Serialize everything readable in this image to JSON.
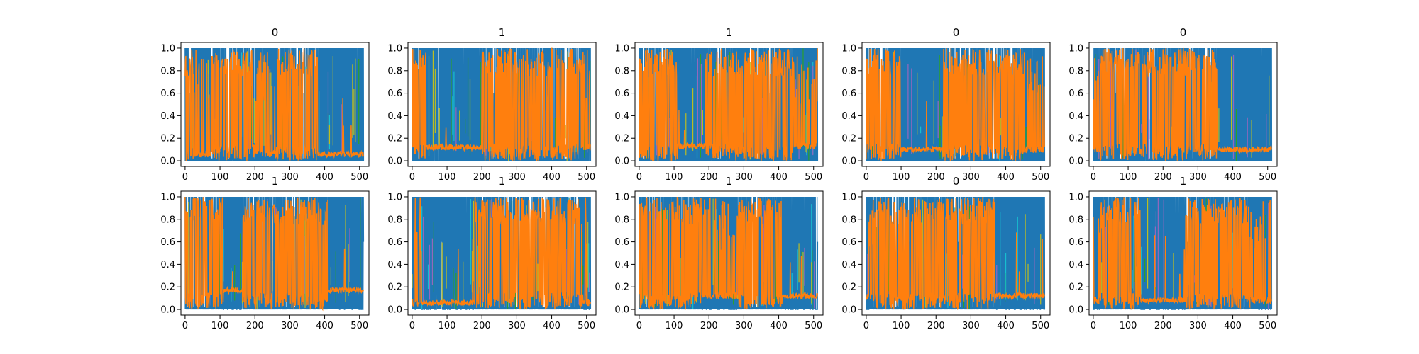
{
  "chart_data": [
    {
      "type": "line",
      "title": "0",
      "xlim": [
        -12,
        527
      ],
      "ylim": [
        -0.05,
        1.05
      ],
      "x_ticks": [
        0,
        100,
        200,
        300,
        400,
        500
      ],
      "y_ticks": [
        0.0,
        0.2,
        0.4,
        0.6,
        0.8,
        1.0
      ],
      "x_tick_labels": [
        "0",
        "100",
        "200",
        "300",
        "400",
        "500"
      ],
      "y_tick_labels": [
        "0.0",
        "0.2",
        "0.4",
        "0.6",
        "0.8",
        "1.0"
      ],
      "x": [
        0,
        511
      ],
      "segments": [
        {
          "from": 0,
          "to": 25,
          "level": "orange"
        },
        {
          "from": 25,
          "to": 75,
          "level": "mixed"
        },
        {
          "from": 75,
          "to": 200,
          "level": "orange"
        },
        {
          "from": 200,
          "to": 260,
          "level": "mixed"
        },
        {
          "from": 260,
          "to": 380,
          "level": "orange"
        },
        {
          "from": 380,
          "to": 511,
          "level": "blue"
        }
      ],
      "orange_baseline": 0.06,
      "series_colors": [
        "#1f77b4",
        "#ff7f0e",
        "#2ca02c",
        "#17becf",
        "#bcbd22",
        "#9467bd"
      ]
    },
    {
      "type": "line",
      "title": "1",
      "xlim": [
        -12,
        527
      ],
      "ylim": [
        -0.05,
        1.05
      ],
      "x_ticks": [
        0,
        100,
        200,
        300,
        400,
        500
      ],
      "y_ticks": [
        0.0,
        0.2,
        0.4,
        0.6,
        0.8,
        1.0
      ],
      "x_tick_labels": [
        "0",
        "100",
        "200",
        "300",
        "400",
        "500"
      ],
      "y_tick_labels": [
        "0.0",
        "0.2",
        "0.4",
        "0.6",
        "0.8",
        "1.0"
      ],
      "x": [
        0,
        511
      ],
      "segments": [
        {
          "from": 0,
          "to": 40,
          "level": "orange"
        },
        {
          "from": 40,
          "to": 200,
          "level": "blue"
        },
        {
          "from": 200,
          "to": 490,
          "level": "orange"
        },
        {
          "from": 490,
          "to": 511,
          "level": "mixed"
        }
      ],
      "orange_baseline": 0.12,
      "series_colors": [
        "#1f77b4",
        "#ff7f0e",
        "#2ca02c",
        "#17becf",
        "#bcbd22",
        "#9467bd"
      ]
    },
    {
      "type": "line",
      "title": "1",
      "xlim": [
        -12,
        527
      ],
      "ylim": [
        -0.05,
        1.05
      ],
      "x_ticks": [
        0,
        100,
        200,
        300,
        400,
        500
      ],
      "y_ticks": [
        0.0,
        0.2,
        0.4,
        0.6,
        0.8,
        1.0
      ],
      "x_tick_labels": [
        "0",
        "100",
        "200",
        "300",
        "400",
        "500"
      ],
      "y_tick_labels": [
        "0.0",
        "0.2",
        "0.4",
        "0.6",
        "0.8",
        "1.0"
      ],
      "x": [
        0,
        511
      ],
      "segments": [
        {
          "from": 0,
          "to": 110,
          "level": "orange"
        },
        {
          "from": 110,
          "to": 190,
          "level": "blue"
        },
        {
          "from": 190,
          "to": 440,
          "level": "orange"
        },
        {
          "from": 440,
          "to": 511,
          "level": "mixed"
        }
      ],
      "orange_baseline": 0.13,
      "series_colors": [
        "#1f77b4",
        "#ff7f0e",
        "#2ca02c",
        "#17becf",
        "#bcbd22",
        "#9467bd"
      ]
    },
    {
      "type": "line",
      "title": "0",
      "xlim": [
        -12,
        527
      ],
      "ylim": [
        -0.05,
        1.05
      ],
      "x_ticks": [
        0,
        100,
        200,
        300,
        400,
        500
      ],
      "y_ticks": [
        0.0,
        0.2,
        0.4,
        0.6,
        0.8,
        1.0
      ],
      "x_tick_labels": [
        "0",
        "100",
        "200",
        "300",
        "400",
        "500"
      ],
      "y_tick_labels": [
        "0.0",
        "0.2",
        "0.4",
        "0.6",
        "0.8",
        "1.0"
      ],
      "x": [
        0,
        511
      ],
      "segments": [
        {
          "from": 0,
          "to": 100,
          "level": "orange"
        },
        {
          "from": 100,
          "to": 220,
          "level": "blue"
        },
        {
          "from": 220,
          "to": 450,
          "level": "orange"
        },
        {
          "from": 450,
          "to": 511,
          "level": "mixed"
        }
      ],
      "orange_baseline": 0.1,
      "series_colors": [
        "#1f77b4",
        "#ff7f0e",
        "#2ca02c",
        "#17becf",
        "#bcbd22",
        "#9467bd"
      ]
    },
    {
      "type": "line",
      "title": "0",
      "xlim": [
        -12,
        527
      ],
      "ylim": [
        -0.05,
        1.05
      ],
      "x_ticks": [
        0,
        100,
        200,
        300,
        400,
        500
      ],
      "y_ticks": [
        0.0,
        0.2,
        0.4,
        0.6,
        0.8,
        1.0
      ],
      "x_tick_labels": [
        "0",
        "100",
        "200",
        "300",
        "400",
        "500"
      ],
      "y_tick_labels": [
        "0.0",
        "0.2",
        "0.4",
        "0.6",
        "0.8",
        "1.0"
      ],
      "x": [
        0,
        511
      ],
      "segments": [
        {
          "from": 0,
          "to": 20,
          "level": "mixed"
        },
        {
          "from": 20,
          "to": 355,
          "level": "orange"
        },
        {
          "from": 355,
          "to": 511,
          "level": "blue"
        }
      ],
      "orange_baseline": 0.1,
      "series_colors": [
        "#1f77b4",
        "#ff7f0e",
        "#2ca02c",
        "#17becf",
        "#bcbd22",
        "#9467bd"
      ]
    },
    {
      "type": "line",
      "title": "1",
      "xlim": [
        -12,
        527
      ],
      "ylim": [
        -0.05,
        1.05
      ],
      "x_ticks": [
        0,
        100,
        200,
        300,
        400,
        500
      ],
      "y_ticks": [
        0.0,
        0.2,
        0.4,
        0.6,
        0.8,
        1.0
      ],
      "x_tick_labels": [
        "0",
        "100",
        "200",
        "300",
        "400",
        "500"
      ],
      "y_tick_labels": [
        "0.0",
        "0.2",
        "0.4",
        "0.6",
        "0.8",
        "1.0"
      ],
      "x": [
        0,
        511
      ],
      "segments": [
        {
          "from": 0,
          "to": 110,
          "level": "orange"
        },
        {
          "from": 110,
          "to": 165,
          "level": "blue"
        },
        {
          "from": 165,
          "to": 410,
          "level": "orange"
        },
        {
          "from": 410,
          "to": 511,
          "level": "blue"
        }
      ],
      "orange_baseline": 0.17,
      "series_colors": [
        "#1f77b4",
        "#ff7f0e",
        "#2ca02c",
        "#17becf",
        "#bcbd22",
        "#9467bd"
      ]
    },
    {
      "type": "line",
      "title": "1",
      "xlim": [
        -12,
        527
      ],
      "ylim": [
        -0.05,
        1.05
      ],
      "x_ticks": [
        0,
        100,
        200,
        300,
        400,
        500
      ],
      "y_ticks": [
        0.0,
        0.2,
        0.4,
        0.6,
        0.8,
        1.0
      ],
      "x_tick_labels": [
        "0",
        "100",
        "200",
        "300",
        "400",
        "500"
      ],
      "y_tick_labels": [
        "0.0",
        "0.2",
        "0.4",
        "0.6",
        "0.8",
        "1.0"
      ],
      "x": [
        0,
        511
      ],
      "segments": [
        {
          "from": 0,
          "to": 30,
          "level": "mixed"
        },
        {
          "from": 30,
          "to": 180,
          "level": "blue"
        },
        {
          "from": 180,
          "to": 490,
          "level": "orange"
        },
        {
          "from": 490,
          "to": 511,
          "level": "mixed"
        }
      ],
      "orange_baseline": 0.06,
      "series_colors": [
        "#1f77b4",
        "#ff7f0e",
        "#2ca02c",
        "#17becf",
        "#bcbd22",
        "#9467bd"
      ]
    },
    {
      "type": "line",
      "title": "1",
      "xlim": [
        -12,
        527
      ],
      "ylim": [
        -0.05,
        1.05
      ],
      "x_ticks": [
        0,
        100,
        200,
        300,
        400,
        500
      ],
      "y_ticks": [
        0.0,
        0.2,
        0.4,
        0.6,
        0.8,
        1.0
      ],
      "x_tick_labels": [
        "0",
        "100",
        "200",
        "300",
        "400",
        "500"
      ],
      "y_tick_labels": [
        "0.0",
        "0.2",
        "0.4",
        "0.6",
        "0.8",
        "1.0"
      ],
      "x": [
        0,
        511
      ],
      "segments": [
        {
          "from": 0,
          "to": 180,
          "level": "orange"
        },
        {
          "from": 180,
          "to": 280,
          "level": "mixed"
        },
        {
          "from": 280,
          "to": 410,
          "level": "orange"
        },
        {
          "from": 410,
          "to": 511,
          "level": "blue"
        }
      ],
      "orange_baseline": 0.12,
      "series_colors": [
        "#1f77b4",
        "#ff7f0e",
        "#2ca02c",
        "#17becf",
        "#bcbd22",
        "#9467bd"
      ]
    },
    {
      "type": "line",
      "title": "0",
      "xlim": [
        -12,
        527
      ],
      "ylim": [
        -0.05,
        1.05
      ],
      "x_ticks": [
        0,
        100,
        200,
        300,
        400,
        500
      ],
      "y_ticks": [
        0.0,
        0.2,
        0.4,
        0.6,
        0.8,
        1.0
      ],
      "x_tick_labels": [
        "0",
        "100",
        "200",
        "300",
        "400",
        "500"
      ],
      "y_tick_labels": [
        "0.0",
        "0.2",
        "0.4",
        "0.6",
        "0.8",
        "1.0"
      ],
      "x": [
        0,
        511
      ],
      "segments": [
        {
          "from": 0,
          "to": 20,
          "level": "mixed"
        },
        {
          "from": 20,
          "to": 370,
          "level": "orange"
        },
        {
          "from": 370,
          "to": 511,
          "level": "blue"
        }
      ],
      "orange_baseline": 0.12,
      "series_colors": [
        "#1f77b4",
        "#ff7f0e",
        "#2ca02c",
        "#17becf",
        "#bcbd22",
        "#9467bd"
      ]
    },
    {
      "type": "line",
      "title": "1",
      "xlim": [
        -12,
        527
      ],
      "ylim": [
        -0.05,
        1.05
      ],
      "x_ticks": [
        0,
        100,
        200,
        300,
        400,
        500
      ],
      "y_ticks": [
        0.0,
        0.2,
        0.4,
        0.6,
        0.8,
        1.0
      ],
      "x_tick_labels": [
        "0",
        "100",
        "200",
        "300",
        "400",
        "500"
      ],
      "y_tick_labels": [
        "0.0",
        "0.2",
        "0.4",
        "0.6",
        "0.8",
        "1.0"
      ],
      "x": [
        0,
        511
      ],
      "segments": [
        {
          "from": 0,
          "to": 25,
          "level": "mixed"
        },
        {
          "from": 25,
          "to": 135,
          "level": "orange"
        },
        {
          "from": 135,
          "to": 265,
          "level": "blue"
        },
        {
          "from": 265,
          "to": 450,
          "level": "orange"
        },
        {
          "from": 450,
          "to": 511,
          "level": "mixed"
        }
      ],
      "orange_baseline": 0.08,
      "series_colors": [
        "#1f77b4",
        "#ff7f0e",
        "#2ca02c",
        "#17becf",
        "#bcbd22",
        "#9467bd"
      ]
    }
  ]
}
